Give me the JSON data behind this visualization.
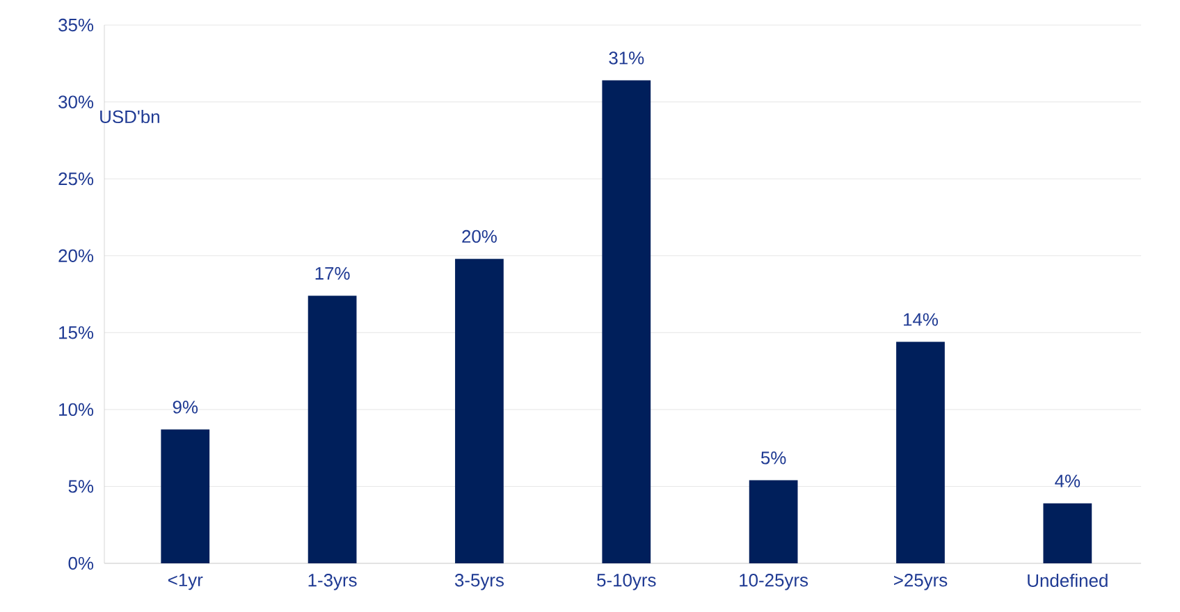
{
  "chart_data": {
    "type": "bar",
    "categories": [
      "<1yr",
      "1-3yrs",
      "3-5yrs",
      "5-10yrs",
      "10-25yrs",
      ">25yrs",
      "Undefined"
    ],
    "values": [
      8.7,
      17.4,
      19.8,
      31.4,
      5.4,
      14.4,
      3.9
    ],
    "value_labels": [
      "9%",
      "17%",
      "20%",
      "31%",
      "5%",
      "14%",
      "4%"
    ],
    "color": "#001f5b",
    "ylim": [
      0,
      35
    ],
    "yticks": [
      {
        "value": 0,
        "label": "0%"
      },
      {
        "value": 5,
        "label": "5%"
      },
      {
        "value": 10,
        "label": "10%"
      },
      {
        "value": 15,
        "label": "15%"
      },
      {
        "value": 20,
        "label": "20%"
      },
      {
        "value": 25,
        "label": "25%"
      },
      {
        "value": 30,
        "label": "30%"
      },
      {
        "value": 35,
        "label": "35%"
      }
    ],
    "annotations": [
      "USD'bn"
    ],
    "grid": "y"
  }
}
